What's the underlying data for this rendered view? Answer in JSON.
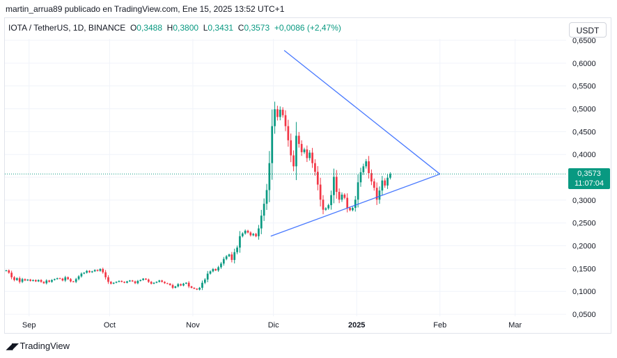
{
  "header": {
    "publisher": "martin_arrua89 publicado en TradingView.com, Ene 15, 2025 13:52 UTC+1"
  },
  "legend": {
    "symbol": "IOTA / TetherUS, 1D, BINANCE",
    "o_label": "O",
    "o_value": "0,3488",
    "h_label": "H",
    "h_value": "0,3800",
    "l_label": "L",
    "l_value": "0,3431",
    "c_label": "C",
    "c_value": "0,3573",
    "change": "+0,0086 (+2,47%)"
  },
  "currency_button": "USDT",
  "price_label": {
    "price": "0,3573",
    "countdown": "11:07:04"
  },
  "footer": {
    "logo_text": "TradingView"
  },
  "colors": {
    "up": "#089981",
    "down": "#f23645",
    "trendline": "#2962ff",
    "current_price_line": "#089981"
  },
  "chart_data": {
    "type": "candlestick",
    "title": "IOTA / TetherUS, 1D, BINANCE",
    "x_ticks": [
      {
        "label": "Sep",
        "date": "2024-09-01"
      },
      {
        "label": "Oct",
        "date": "2024-10-01"
      },
      {
        "label": "Nov",
        "date": "2024-11-01"
      },
      {
        "label": "Dic",
        "date": "2024-12-01"
      },
      {
        "label": "2025",
        "date": "2025-01-01",
        "bold": true
      },
      {
        "label": "Feb",
        "date": "2025-02-01"
      },
      {
        "label": "Mar",
        "date": "2025-03-01"
      }
    ],
    "y_ticks": [
      "0,6500",
      "0,6000",
      "0,5500",
      "0,5000",
      "0,4500",
      "0,4000",
      "0,3500",
      "0,3000",
      "0,2500",
      "0,2000",
      "0,1500",
      "0,1000",
      "0,0500"
    ],
    "y_range": [
      0.0486,
      0.65
    ],
    "x_range": [
      "2024-08-23",
      "2025-03-20"
    ],
    "current_price": 0.3573,
    "trendlines": [
      {
        "from": {
          "date": "2024-12-05",
          "price": 0.628
        },
        "to": {
          "date": "2025-02-01",
          "price": 0.357
        }
      },
      {
        "from": {
          "date": "2024-11-30",
          "price": 0.221
        },
        "to": {
          "date": "2025-02-01",
          "price": 0.357
        }
      }
    ],
    "closes": [
      0.146,
      0.141,
      0.131,
      0.125,
      0.129,
      0.121,
      0.127,
      0.124,
      0.126,
      0.123,
      0.125,
      0.122,
      0.125,
      0.121,
      0.118,
      0.124,
      0.121,
      0.125,
      0.127,
      0.129,
      0.128,
      0.124,
      0.131,
      0.127,
      0.122,
      0.121,
      0.127,
      0.133,
      0.139,
      0.141,
      0.145,
      0.142,
      0.144,
      0.147,
      0.145,
      0.149,
      0.142,
      0.131,
      0.121,
      0.117,
      0.119,
      0.121,
      0.123,
      0.121,
      0.119,
      0.122,
      0.124,
      0.122,
      0.118,
      0.123,
      0.125,
      0.128,
      0.126,
      0.121,
      0.117,
      0.119,
      0.121,
      0.124,
      0.121,
      0.118,
      0.117,
      0.114,
      0.108,
      0.111,
      0.116,
      0.113,
      0.117,
      0.119,
      0.111,
      0.108,
      0.106,
      0.104,
      0.108,
      0.119,
      0.126,
      0.139,
      0.144,
      0.149,
      0.146,
      0.153,
      0.161,
      0.171,
      0.177,
      0.181,
      0.169,
      0.186,
      0.196,
      0.221,
      0.227,
      0.233,
      0.229,
      0.223,
      0.226,
      0.221,
      0.238,
      0.266,
      0.292,
      0.322,
      0.381,
      0.462,
      0.499,
      0.482,
      0.498,
      0.486,
      0.462,
      0.431,
      0.398,
      0.374,
      0.441,
      0.423,
      0.405,
      0.411,
      0.392,
      0.404,
      0.381,
      0.362,
      0.334,
      0.301,
      0.279,
      0.282,
      0.289,
      0.311,
      0.351,
      0.318,
      0.301,
      0.312,
      0.305,
      0.283,
      0.278,
      0.283,
      0.301,
      0.339,
      0.361,
      0.374,
      0.385,
      0.359,
      0.341,
      0.327,
      0.301,
      0.321,
      0.343,
      0.332,
      0.349,
      0.3573
    ]
  }
}
